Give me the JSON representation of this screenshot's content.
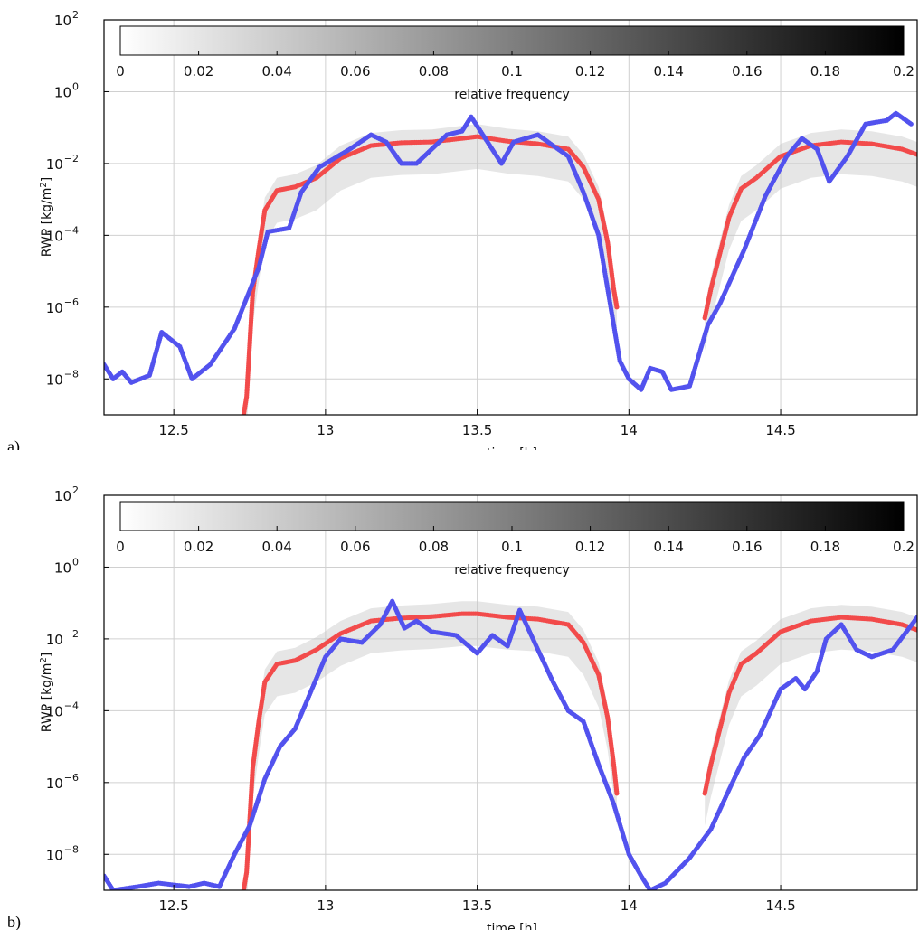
{
  "figure_labels": [
    "a)",
    "b)"
  ],
  "colors": {
    "red": "#f24b4b",
    "blue": "#5252ee",
    "grid": "#d0d0d0"
  },
  "chart_data": [
    {
      "type": "scatter",
      "panel": "a)",
      "title": "",
      "xlabel": "time [h]",
      "ylabel": "RWP [kg/m²]",
      "yscale": "log",
      "xlim": [
        12.27,
        14.95
      ],
      "ylim_exp": [
        -9,
        2
      ],
      "xticks": [
        "12.5",
        "13",
        "13.5",
        "14",
        "14.5"
      ],
      "xtick_values": [
        12.5,
        13,
        13.5,
        14,
        14.5
      ],
      "yticks_exp": [
        "2",
        "0",
        "-2",
        "-4",
        "-6",
        "-8"
      ],
      "grid": true,
      "colorbar": {
        "label": "relative frequency",
        "ticks": [
          "0",
          "0.02",
          "0.04",
          "0.06",
          "0.08",
          "0.1",
          "0.12",
          "0.14",
          "0.16",
          "0.18",
          "0.2"
        ],
        "range": [
          0,
          0.2
        ]
      },
      "series": [
        {
          "color": "red",
          "points": [
            [
              12.73,
              -9.0
            ],
            [
              12.74,
              -8.5
            ],
            [
              12.76,
              -5.6
            ],
            [
              12.78,
              -4.4
            ],
            [
              12.8,
              -3.3
            ],
            [
              12.84,
              -2.75
            ],
            [
              12.9,
              -2.65
            ],
            [
              12.97,
              -2.4
            ],
            [
              13.05,
              -1.85
            ],
            [
              13.15,
              -1.5
            ],
            [
              13.25,
              -1.42
            ],
            [
              13.35,
              -1.4
            ],
            [
              13.45,
              -1.3
            ],
            [
              13.5,
              -1.25
            ],
            [
              13.6,
              -1.38
            ],
            [
              13.7,
              -1.45
            ],
            [
              13.8,
              -1.6
            ],
            [
              13.85,
              -2.1
            ],
            [
              13.9,
              -3.0
            ],
            [
              13.93,
              -4.2
            ],
            [
              13.95,
              -5.5
            ],
            [
              13.96,
              -6.0
            ],
            [
              14.25,
              -6.3
            ],
            [
              14.27,
              -5.5
            ],
            [
              14.3,
              -4.5
            ],
            [
              14.33,
              -3.5
            ],
            [
              14.37,
              -2.7
            ],
            [
              14.42,
              -2.4
            ],
            [
              14.5,
              -1.8
            ],
            [
              14.6,
              -1.5
            ],
            [
              14.7,
              -1.4
            ],
            [
              14.8,
              -1.45
            ],
            [
              14.9,
              -1.6
            ],
            [
              14.95,
              -1.75
            ]
          ]
        },
        {
          "color": "blue",
          "points": [
            [
              12.27,
              -7.6
            ],
            [
              12.3,
              -8.0
            ],
            [
              12.33,
              -7.8
            ],
            [
              12.36,
              -8.1
            ],
            [
              12.42,
              -7.9
            ],
            [
              12.46,
              -6.7
            ],
            [
              12.52,
              -7.1
            ],
            [
              12.56,
              -8.0
            ],
            [
              12.62,
              -7.6
            ],
            [
              12.7,
              -6.6
            ],
            [
              12.78,
              -4.9
            ],
            [
              12.81,
              -3.9
            ],
            [
              12.88,
              -3.8
            ],
            [
              12.92,
              -2.8
            ],
            [
              12.98,
              -2.1
            ],
            [
              13.08,
              -1.6
            ],
            [
              13.15,
              -1.2
            ],
            [
              13.2,
              -1.4
            ],
            [
              13.25,
              -2.0
            ],
            [
              13.3,
              -2.0
            ],
            [
              13.35,
              -1.6
            ],
            [
              13.4,
              -1.2
            ],
            [
              13.45,
              -1.1
            ],
            [
              13.48,
              -0.7
            ],
            [
              13.58,
              -2.0
            ],
            [
              13.62,
              -1.4
            ],
            [
              13.7,
              -1.2
            ],
            [
              13.8,
              -1.8
            ],
            [
              13.85,
              -2.8
            ],
            [
              13.9,
              -4.0
            ],
            [
              13.93,
              -5.5
            ],
            [
              13.97,
              -7.5
            ],
            [
              14.0,
              -8.0
            ],
            [
              14.04,
              -8.3
            ],
            [
              14.07,
              -7.7
            ],
            [
              14.11,
              -7.8
            ],
            [
              14.14,
              -8.3
            ],
            [
              14.2,
              -8.2
            ],
            [
              14.26,
              -6.5
            ],
            [
              14.3,
              -5.9
            ],
            [
              14.38,
              -4.4
            ],
            [
              14.45,
              -2.9
            ],
            [
              14.52,
              -1.8
            ],
            [
              14.57,
              -1.3
            ],
            [
              14.62,
              -1.6
            ],
            [
              14.66,
              -2.5
            ],
            [
              14.72,
              -1.8
            ],
            [
              14.78,
              -0.9
            ],
            [
              14.85,
              -0.8
            ],
            [
              14.88,
              -0.6
            ],
            [
              14.93,
              -0.9
            ]
          ]
        }
      ]
    },
    {
      "type": "scatter",
      "panel": "b)",
      "title": "",
      "xlabel": "time [h]",
      "ylabel": "RWP [kg/m²]",
      "yscale": "log",
      "xlim": [
        12.27,
        14.95
      ],
      "ylim_exp": [
        -9,
        2
      ],
      "xticks": [
        "12.5",
        "13",
        "13.5",
        "14",
        "14.5"
      ],
      "xtick_values": [
        12.5,
        13,
        13.5,
        14,
        14.5
      ],
      "yticks_exp": [
        "2",
        "0",
        "-2",
        "-4",
        "-6",
        "-8"
      ],
      "grid": true,
      "colorbar": {
        "label": "relative frequency",
        "ticks": [
          "0",
          "0.02",
          "0.04",
          "0.06",
          "0.08",
          "0.1",
          "0.12",
          "0.14",
          "0.16",
          "0.18",
          "0.2"
        ],
        "range": [
          0,
          0.2
        ]
      },
      "series": [
        {
          "color": "red",
          "points": [
            [
              12.73,
              -9.0
            ],
            [
              12.74,
              -8.5
            ],
            [
              12.76,
              -5.6
            ],
            [
              12.78,
              -4.3
            ],
            [
              12.8,
              -3.2
            ],
            [
              12.84,
              -2.7
            ],
            [
              12.9,
              -2.6
            ],
            [
              12.97,
              -2.3
            ],
            [
              13.05,
              -1.85
            ],
            [
              13.15,
              -1.5
            ],
            [
              13.25,
              -1.42
            ],
            [
              13.35,
              -1.38
            ],
            [
              13.45,
              -1.3
            ],
            [
              13.5,
              -1.3
            ],
            [
              13.6,
              -1.4
            ],
            [
              13.7,
              -1.45
            ],
            [
              13.8,
              -1.6
            ],
            [
              13.85,
              -2.1
            ],
            [
              13.9,
              -3.0
            ],
            [
              13.93,
              -4.2
            ],
            [
              13.95,
              -5.5
            ],
            [
              13.96,
              -6.3
            ],
            [
              14.25,
              -6.3
            ],
            [
              14.27,
              -5.5
            ],
            [
              14.3,
              -4.5
            ],
            [
              14.33,
              -3.5
            ],
            [
              14.37,
              -2.7
            ],
            [
              14.42,
              -2.4
            ],
            [
              14.5,
              -1.8
            ],
            [
              14.6,
              -1.5
            ],
            [
              14.7,
              -1.4
            ],
            [
              14.8,
              -1.45
            ],
            [
              14.9,
              -1.6
            ],
            [
              14.95,
              -1.75
            ]
          ]
        },
        {
          "color": "blue",
          "points": [
            [
              12.27,
              -8.6
            ],
            [
              12.3,
              -9.0
            ],
            [
              12.38,
              -8.9
            ],
            [
              12.45,
              -8.8
            ],
            [
              12.55,
              -8.9
            ],
            [
              12.6,
              -8.8
            ],
            [
              12.65,
              -8.9
            ],
            [
              12.7,
              -8.0
            ],
            [
              12.75,
              -7.2
            ],
            [
              12.8,
              -5.9
            ],
            [
              12.85,
              -5.0
            ],
            [
              12.9,
              -4.5
            ],
            [
              12.95,
              -3.5
            ],
            [
              13.0,
              -2.5
            ],
            [
              13.05,
              -2.0
            ],
            [
              13.12,
              -2.1
            ],
            [
              13.18,
              -1.6
            ],
            [
              13.22,
              -0.95
            ],
            [
              13.26,
              -1.7
            ],
            [
              13.3,
              -1.5
            ],
            [
              13.35,
              -1.8
            ],
            [
              13.43,
              -1.9
            ],
            [
              13.5,
              -2.4
            ],
            [
              13.55,
              -1.9
            ],
            [
              13.6,
              -2.2
            ],
            [
              13.64,
              -1.2
            ],
            [
              13.7,
              -2.3
            ],
            [
              13.75,
              -3.2
            ],
            [
              13.8,
              -4.0
            ],
            [
              13.85,
              -4.3
            ],
            [
              13.9,
              -5.5
            ],
            [
              13.95,
              -6.6
            ],
            [
              14.0,
              -8.0
            ],
            [
              14.04,
              -8.6
            ],
            [
              14.07,
              -9.0
            ],
            [
              14.12,
              -8.8
            ],
            [
              14.2,
              -8.1
            ],
            [
              14.27,
              -7.3
            ],
            [
              14.33,
              -6.2
            ],
            [
              14.38,
              -5.3
            ],
            [
              14.43,
              -4.7
            ],
            [
              14.5,
              -3.4
            ],
            [
              14.55,
              -3.1
            ],
            [
              14.58,
              -3.4
            ],
            [
              14.62,
              -2.9
            ],
            [
              14.65,
              -2.0
            ],
            [
              14.7,
              -1.6
            ],
            [
              14.75,
              -2.3
            ],
            [
              14.8,
              -2.5
            ],
            [
              14.87,
              -2.3
            ],
            [
              14.95,
              -1.4
            ]
          ]
        }
      ]
    }
  ]
}
